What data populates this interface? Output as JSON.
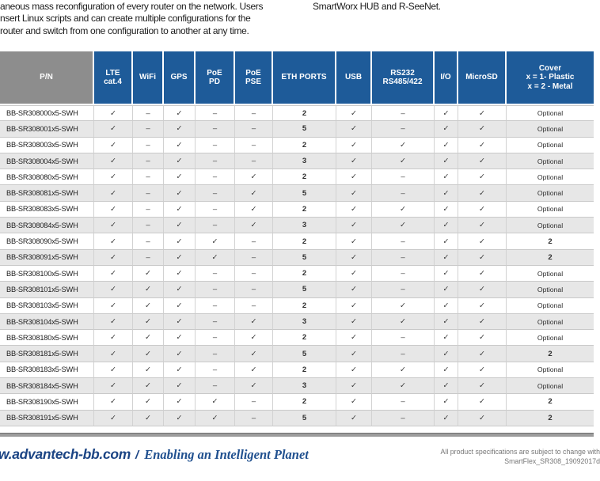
{
  "intro": {
    "left_lines": [
      "aneous mass reconfiguration of every router on the network. Users",
      "nsert Linux scripts and can create multiple configurations for the",
      "router and switch from one configuration to another at any time."
    ],
    "right_line": "SmartWorx HUB and R-SeeNet."
  },
  "table": {
    "columns": [
      "P/N",
      "LTE\ncat.4",
      "WiFi",
      "GPS",
      "PoE\nPD",
      "PoE\nPSE",
      "ETH PORTS",
      "USB",
      "RS232\nRS485/422",
      "I/O",
      "MicroSD",
      "Cover\nx = 1- Plastic\nx = 2 - Metal"
    ],
    "rows": [
      {
        "pn": "BB-SR308000x5-SWH",
        "cells": [
          "✓",
          "–",
          "✓",
          "–",
          "–",
          "2",
          "✓",
          "–",
          "✓",
          "✓",
          "Optional"
        ]
      },
      {
        "pn": "BB-SR308001x5-SWH",
        "cells": [
          "✓",
          "–",
          "✓",
          "–",
          "–",
          "5",
          "✓",
          "–",
          "✓",
          "✓",
          "Optional"
        ]
      },
      {
        "pn": "BB-SR308003x5-SWH",
        "cells": [
          "✓",
          "–",
          "✓",
          "–",
          "–",
          "2",
          "✓",
          "✓",
          "✓",
          "✓",
          "Optional"
        ]
      },
      {
        "pn": "BB-SR308004x5-SWH",
        "cells": [
          "✓",
          "–",
          "✓",
          "–",
          "–",
          "3",
          "✓",
          "✓",
          "✓",
          "✓",
          "Optional"
        ]
      },
      {
        "pn": "BB-SR308080x5-SWH",
        "cells": [
          "✓",
          "–",
          "✓",
          "–",
          "✓",
          "2",
          "✓",
          "–",
          "✓",
          "✓",
          "Optional"
        ]
      },
      {
        "pn": "BB-SR308081x5-SWH",
        "cells": [
          "✓",
          "–",
          "✓",
          "–",
          "✓",
          "5",
          "✓",
          "–",
          "✓",
          "✓",
          "Optional"
        ]
      },
      {
        "pn": "BB-SR308083x5-SWH",
        "cells": [
          "✓",
          "–",
          "✓",
          "–",
          "✓",
          "2",
          "✓",
          "✓",
          "✓",
          "✓",
          "Optional"
        ]
      },
      {
        "pn": "BB-SR308084x5-SWH",
        "cells": [
          "✓",
          "–",
          "✓",
          "–",
          "✓",
          "3",
          "✓",
          "✓",
          "✓",
          "✓",
          "Optional"
        ]
      },
      {
        "pn": "BB-SR308090x5-SWH",
        "cells": [
          "✓",
          "–",
          "✓",
          "✓",
          "–",
          "2",
          "✓",
          "–",
          "✓",
          "✓",
          "2"
        ]
      },
      {
        "pn": "BB-SR308091x5-SWH",
        "cells": [
          "✓",
          "–",
          "✓",
          "✓",
          "–",
          "5",
          "✓",
          "–",
          "✓",
          "✓",
          "2"
        ]
      },
      {
        "pn": "BB-SR308100x5-SWH",
        "cells": [
          "✓",
          "✓",
          "✓",
          "–",
          "–",
          "2",
          "✓",
          "–",
          "✓",
          "✓",
          "Optional"
        ]
      },
      {
        "pn": "BB-SR308101x5-SWH",
        "cells": [
          "✓",
          "✓",
          "✓",
          "–",
          "–",
          "5",
          "✓",
          "–",
          "✓",
          "✓",
          "Optional"
        ]
      },
      {
        "pn": "BB-SR308103x5-SWH",
        "cells": [
          "✓",
          "✓",
          "✓",
          "–",
          "–",
          "2",
          "✓",
          "✓",
          "✓",
          "✓",
          "Optional"
        ]
      },
      {
        "pn": "BB-SR308104x5-SWH",
        "cells": [
          "✓",
          "✓",
          "✓",
          "–",
          "✓",
          "3",
          "✓",
          "✓",
          "✓",
          "✓",
          "Optional"
        ]
      },
      {
        "pn": "BB-SR308180x5-SWH",
        "cells": [
          "✓",
          "✓",
          "✓",
          "–",
          "✓",
          "2",
          "✓",
          "–",
          "✓",
          "✓",
          "Optional"
        ]
      },
      {
        "pn": "BB-SR308181x5-SWH",
        "cells": [
          "✓",
          "✓",
          "✓",
          "–",
          "✓",
          "5",
          "✓",
          "–",
          "✓",
          "✓",
          "2"
        ]
      },
      {
        "pn": "BB-SR308183x5-SWH",
        "cells": [
          "✓",
          "✓",
          "✓",
          "–",
          "✓",
          "2",
          "✓",
          "✓",
          "✓",
          "✓",
          "Optional"
        ]
      },
      {
        "pn": "BB-SR308184x5-SWH",
        "cells": [
          "✓",
          "✓",
          "✓",
          "–",
          "✓",
          "3",
          "✓",
          "✓",
          "✓",
          "✓",
          "Optional"
        ]
      },
      {
        "pn": "BB-SR308190x5-SWH",
        "cells": [
          "✓",
          "✓",
          "✓",
          "✓",
          "–",
          "2",
          "✓",
          "–",
          "✓",
          "✓",
          "2"
        ]
      },
      {
        "pn": "BB-SR308191x5-SWH",
        "cells": [
          "✓",
          "✓",
          "✓",
          "✓",
          "–",
          "5",
          "✓",
          "–",
          "✓",
          "✓",
          "2"
        ]
      }
    ]
  },
  "footer": {
    "website": "w.advantech-bb.com",
    "separator": "/",
    "slogan": "Enabling an Intelligent Planet",
    "note_line1": "All product specifications are subject to change with",
    "note_line2": "SmartFlex_SR308_19092017d"
  },
  "colors": {
    "header_blue": "#1e5b99",
    "header_gray": "#8d8d8d",
    "row_alt": "#e7e7e7",
    "footer_blue": "#1b4484",
    "slogan_blue": "#20508f"
  }
}
